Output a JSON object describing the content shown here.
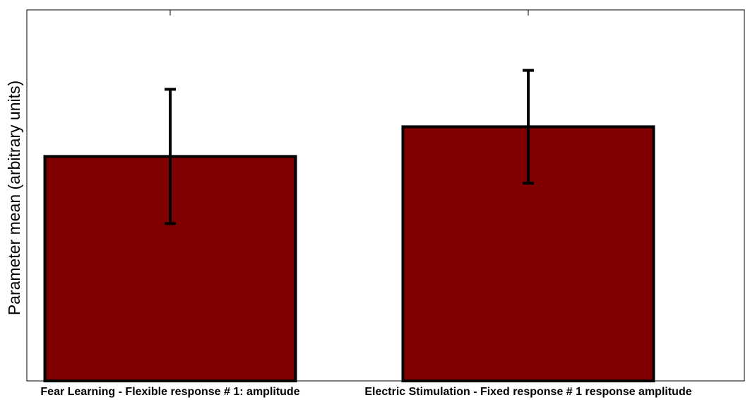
{
  "chart_data": {
    "type": "bar",
    "title": "",
    "xlabel": "",
    "ylabel": "Parameter mean (arbitrary units)",
    "categories": [
      "Fear Learning - Flexible response # 1: amplitude",
      "Electric Stimulation - Fixed response # 1 response amplitude"
    ],
    "values": [
      0.605,
      0.685
    ],
    "errors": [
      0.181,
      0.152
    ],
    "ylim": [
      0,
      1
    ],
    "ticks_labeled": false,
    "grid": false,
    "legend": "none",
    "colors": {
      "bar_fill": "#800000",
      "bar_edge": "#000000",
      "error_bar": "#000000",
      "axes": "#000000",
      "background": "#ffffff"
    }
  }
}
